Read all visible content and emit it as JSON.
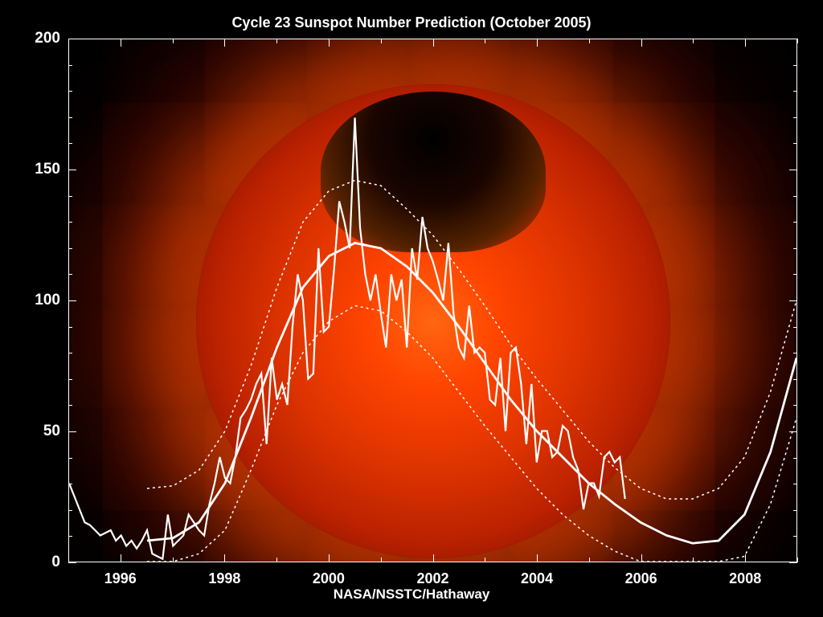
{
  "title": "Cycle 23 Sunspot Number Prediction (October 2005)",
  "attribution": "NASA/NSSTC/Hathaway",
  "chart": {
    "type": "line",
    "background_color": "#000000",
    "sun_colors": [
      "#ff6611",
      "#ff4400",
      "#dd3300",
      "#bb2200",
      "#881100",
      "#330800"
    ],
    "corona_colors": [
      "rgba(255,100,0,0.4)",
      "rgba(255,60,0,0.3)",
      "rgba(200,40,0,0.2)"
    ],
    "axis_color": "#ffffff",
    "line_color": "#ffffff",
    "title_fontsize": 18,
    "label_fontsize": 19,
    "xlim": [
      1995,
      2009
    ],
    "ylim": [
      0,
      200
    ],
    "yticks": [
      0,
      50,
      100,
      150,
      200
    ],
    "xticks": [
      1996,
      1998,
      2000,
      2002,
      2004,
      2006,
      2008
    ],
    "observed": {
      "line_width": 2.2,
      "x": [
        1995.0,
        1995.1,
        1995.2,
        1995.3,
        1995.4,
        1995.5,
        1995.6,
        1995.7,
        1995.8,
        1995.9,
        1996.0,
        1996.1,
        1996.2,
        1996.3,
        1996.4,
        1996.5,
        1996.6,
        1996.7,
        1996.8,
        1996.9,
        1997.0,
        1997.1,
        1997.2,
        1997.3,
        1997.4,
        1997.5,
        1997.6,
        1997.7,
        1997.8,
        1997.9,
        1998.0,
        1998.1,
        1998.2,
        1998.3,
        1998.4,
        1998.5,
        1998.6,
        1998.7,
        1998.8,
        1998.9,
        1999.0,
        1999.1,
        1999.2,
        1999.3,
        1999.4,
        1999.5,
        1999.6,
        1999.7,
        1999.8,
        1999.9,
        2000.0,
        2000.1,
        2000.2,
        2000.3,
        2000.4,
        2000.5,
        2000.6,
        2000.7,
        2000.8,
        2000.9,
        2001.0,
        2001.1,
        2001.2,
        2001.3,
        2001.4,
        2001.5,
        2001.6,
        2001.7,
        2001.8,
        2001.9,
        2002.0,
        2002.1,
        2002.2,
        2002.3,
        2002.4,
        2002.5,
        2002.6,
        2002.7,
        2002.8,
        2002.9,
        2003.0,
        2003.1,
        2003.2,
        2003.3,
        2003.4,
        2003.5,
        2003.6,
        2003.7,
        2003.8,
        2003.9,
        2004.0,
        2004.1,
        2004.2,
        2004.3,
        2004.4,
        2004.5,
        2004.6,
        2004.7,
        2004.8,
        2004.9,
        2005.0,
        2005.1,
        2005.2,
        2005.3,
        2005.4,
        2005.5,
        2005.6,
        2005.7
      ],
      "y": [
        30,
        25,
        20,
        15,
        14,
        12,
        10,
        11,
        12,
        8,
        10,
        6,
        8,
        5,
        8,
        12,
        3,
        2,
        1,
        18,
        6,
        8,
        10,
        18,
        15,
        12,
        10,
        22,
        30,
        40,
        32,
        30,
        40,
        55,
        58,
        62,
        68,
        72,
        45,
        78,
        62,
        68,
        60,
        90,
        110,
        100,
        70,
        72,
        120,
        88,
        90,
        112,
        138,
        130,
        120,
        170,
        128,
        110,
        100,
        110,
        95,
        82,
        110,
        100,
        108,
        82,
        120,
        108,
        132,
        120,
        115,
        108,
        100,
        122,
        95,
        82,
        78,
        98,
        80,
        82,
        80,
        62,
        60,
        78,
        50,
        80,
        82,
        68,
        45,
        68,
        38,
        50,
        50,
        40,
        42,
        52,
        50,
        40,
        35,
        20,
        30,
        30,
        25,
        40,
        42,
        38,
        40,
        24
      ]
    },
    "smoothed": {
      "line_width": 2.8,
      "x": [
        1996.5,
        1997.0,
        1997.5,
        1998.0,
        1998.5,
        1999.0,
        1999.5,
        2000.0,
        2000.5,
        2001.0,
        2001.5,
        2002.0,
        2002.5,
        2003.0,
        2003.5,
        2004.0,
        2004.5,
        2005.0,
        2005.5,
        2006.0,
        2006.5,
        2007.0,
        2007.5,
        2008.0,
        2008.5,
        2009.0
      ],
      "y": [
        8,
        9,
        15,
        30,
        55,
        82,
        105,
        117,
        122,
        120,
        113,
        103,
        90,
        76,
        62,
        50,
        40,
        30,
        22,
        15,
        10,
        7,
        8,
        18,
        42,
        78
      ]
    },
    "upper_band": {
      "line_width": 1.5,
      "dash": "3,4",
      "x": [
        1996.5,
        1997.0,
        1997.5,
        1998.0,
        1998.5,
        1999.0,
        1999.5,
        2000.0,
        2000.5,
        2001.0,
        2001.5,
        2002.0,
        2002.5,
        2003.0,
        2003.5,
        2004.0,
        2004.5,
        2005.0,
        2005.5,
        2006.0,
        2006.5,
        2007.0,
        2007.5,
        2008.0,
        2008.5,
        2009.0
      ],
      "y": [
        28,
        29,
        35,
        50,
        75,
        105,
        130,
        142,
        146,
        144,
        135,
        125,
        112,
        98,
        83,
        70,
        58,
        46,
        36,
        28,
        24,
        24,
        28,
        40,
        65,
        100
      ]
    },
    "lower_band": {
      "line_width": 1.5,
      "dash": "3,4",
      "x": [
        1996.5,
        1997.0,
        1997.5,
        1998.0,
        1998.5,
        1999.0,
        1999.5,
        2000.0,
        2000.5,
        2001.0,
        2001.5,
        2002.0,
        2002.5,
        2003.0,
        2003.5,
        2004.0,
        2004.5,
        2005.0,
        2005.5,
        2006.0,
        2006.5,
        2007.0,
        2007.5,
        2008.0,
        2008.5,
        2009.0
      ],
      "y": [
        0,
        0,
        3,
        12,
        35,
        60,
        80,
        92,
        98,
        96,
        88,
        78,
        65,
        52,
        40,
        28,
        18,
        10,
        4,
        0,
        0,
        0,
        0,
        2,
        22,
        55
      ]
    }
  }
}
